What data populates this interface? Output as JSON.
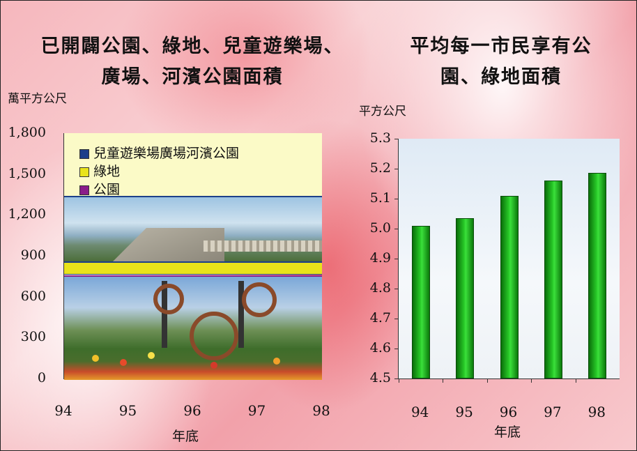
{
  "chart_data": [
    {
      "type": "area",
      "title": "已開闢公園、綠地、兒童遊樂場、廣場、河濱公園面積",
      "title_lines": [
        "已開闢公園、綠地、兒童遊樂場、",
        "廣場、河濱公園面積"
      ],
      "ylabel": "萬平方公尺",
      "xlabel": "年底",
      "x": [
        "94",
        "95",
        "96",
        "97",
        "98"
      ],
      "y_ticks": [
        "1,800",
        "1,500",
        "1,200",
        "900",
        "600",
        "300",
        "0"
      ],
      "ylim": [
        0,
        1800
      ],
      "legend": [
        "兒童遊樂場廣場河濱公園",
        "綠地",
        "公園"
      ],
      "legend_placement": "top-left",
      "series": [
        {
          "name": "公園",
          "values": [
            800,
            800,
            800,
            800,
            800
          ]
        },
        {
          "name": "綠地",
          "values": [
            70,
            70,
            70,
            70,
            70
          ]
        },
        {
          "name": "兒童遊樂場廣場河濱公園",
          "values": [
            490,
            490,
            490,
            500,
            500
          ]
        }
      ],
      "colors": {
        "公園": "#8a1c8a",
        "綠地": "#e9e31a",
        "兒童遊樂場廣場河濱公園": "#1c3f8a"
      }
    },
    {
      "type": "bar",
      "title": "平均每一市民享有公園、綠地面積",
      "title_lines": [
        "平均每一市民享有公",
        "園、綠地面積"
      ],
      "ylabel": "平方公尺",
      "xlabel": "年底",
      "categories": [
        "94",
        "95",
        "96",
        "97",
        "98"
      ],
      "values": [
        5.01,
        5.035,
        5.11,
        5.16,
        5.185
      ],
      "y_ticks": [
        "5.3",
        "5.2",
        "5.1",
        "5.0",
        "4.9",
        "4.8",
        "4.7",
        "4.6",
        "4.5"
      ],
      "ylim": [
        4.5,
        5.3
      ],
      "bar_color": "#1fa81f"
    }
  ]
}
